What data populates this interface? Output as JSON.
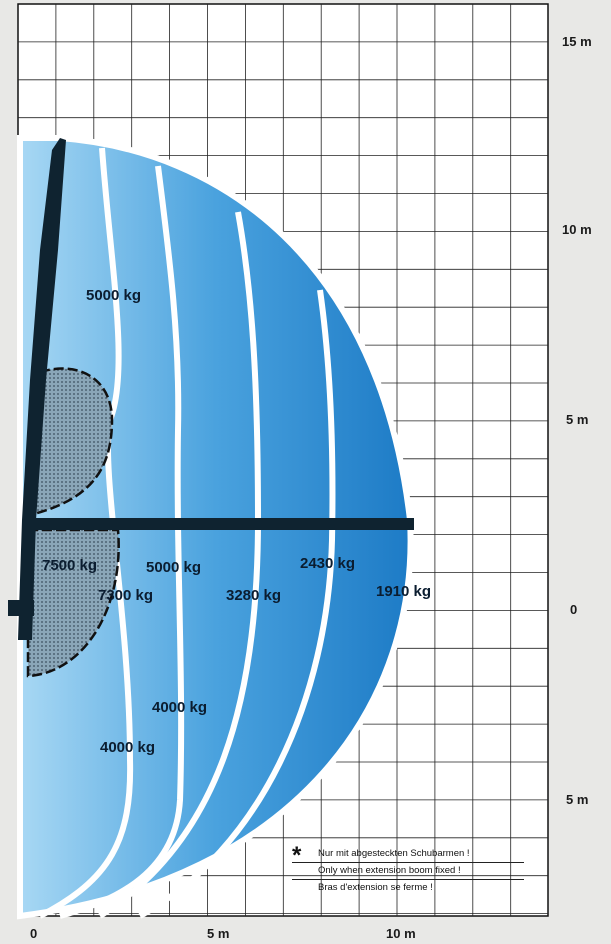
{
  "chart_data": {
    "type": "load-diagram",
    "xlabel": "",
    "ylabel": "",
    "x_ticks": [
      "0",
      "5 m",
      "10 m"
    ],
    "y_ticks": [
      "15 m",
      "10 m",
      "5 m",
      "0",
      "5 m"
    ],
    "xlim": [
      0,
      15
    ],
    "ylim": [
      -7.5,
      16
    ],
    "zones": [
      {
        "label": "5000 kg",
        "max_reach_m": 2.2
      },
      {
        "label": "7500 kg",
        "max_reach_m": 2.5
      },
      {
        "label": "7300 kg",
        "max_reach_m": 2.5
      },
      {
        "label": "4000 kg",
        "max_reach_m": 2.5
      },
      {
        "label": "5000 kg",
        "max_reach_m": 4.5
      },
      {
        "label": "4000 kg",
        "max_reach_m": 4.5
      },
      {
        "label": "3280 kg",
        "max_reach_m": 6.3
      },
      {
        "label": "2430 kg",
        "max_reach_m": 8.0
      },
      {
        "label": "1910 kg",
        "max_reach_m": 10.1
      }
    ],
    "grid": true
  },
  "note": {
    "star": "*",
    "lines": [
      "Nur mit abgesteckten Schubarmen !",
      "Only when extension boom fixed !",
      "Bras d'extension se ferme !"
    ]
  }
}
